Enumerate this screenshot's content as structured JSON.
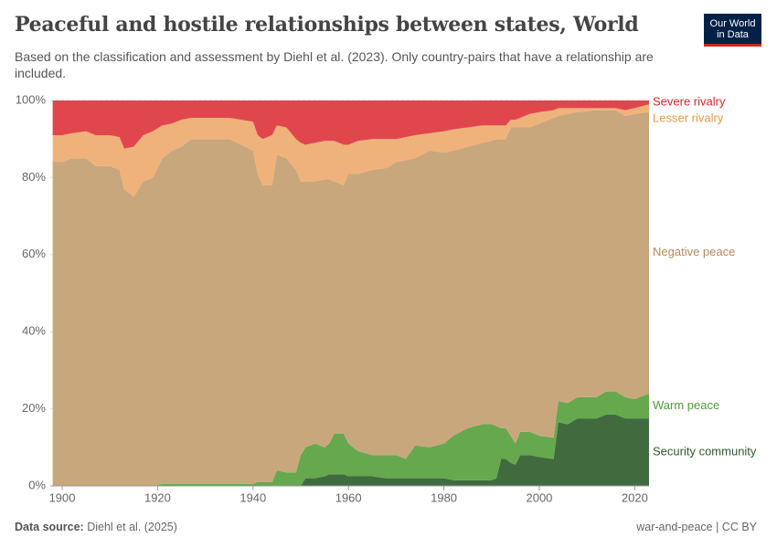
{
  "logo": [
    "Our World",
    "in Data"
  ],
  "chart_data": {
    "type": "stacked-area",
    "title": "Peaceful and hostile relationships between states, World",
    "subtitle": "Based on the classification and assessment by Diehl et al. (2023). Only country-pairs that have a relationship are included.",
    "source_label": "Data source:",
    "source": "Diehl et al. (2025)",
    "license": "war-and-peace | CC BY",
    "x": [
      1898,
      1900,
      1902,
      1905,
      1907,
      1910,
      1912,
      1913,
      1915,
      1917,
      1919,
      1921,
      1923,
      1925,
      1927,
      1930,
      1935,
      1940,
      1941,
      1942,
      1944,
      1945,
      1947,
      1949,
      1950,
      1951,
      1953,
      1955,
      1956,
      1957,
      1959,
      1960,
      1962,
      1965,
      1968,
      1970,
      1972,
      1974,
      1977,
      1980,
      1982,
      1985,
      1988,
      1990,
      1991,
      1992,
      1993,
      1994,
      1995,
      1996,
      1998,
      2000,
      2003,
      2004,
      2006,
      2008,
      2012,
      2014,
      2016,
      2018,
      2020,
      2023
    ],
    "xlim": [
      1897.5,
      2023
    ],
    "xticks": [
      1900,
      1920,
      1940,
      1960,
      1980,
      2000,
      2020
    ],
    "ylim": [
      0,
      100
    ],
    "yticks": [
      {
        "value": 0,
        "label": "0%"
      },
      {
        "value": 20,
        "label": "20%"
      },
      {
        "value": 40,
        "label": "40%"
      },
      {
        "value": 60,
        "label": "60%"
      },
      {
        "value": 80,
        "label": "80%"
      },
      {
        "value": 100,
        "label": "100%"
      }
    ],
    "grid": true,
    "series": [
      {
        "name": "Security community",
        "color": "#416b3f",
        "label_color": "#2e5a2b",
        "values": [
          0,
          0,
          0,
          0,
          0,
          0,
          0,
          0,
          0,
          0,
          0,
          0,
          0,
          0,
          0,
          0,
          0,
          0,
          0,
          0,
          0,
          0,
          0,
          0,
          0,
          2,
          2,
          2.5,
          3,
          3,
          3,
          2.5,
          2.5,
          2.5,
          2,
          2,
          2,
          2,
          2,
          2,
          1.5,
          1.5,
          1.5,
          1.5,
          2,
          7,
          7,
          6,
          5.5,
          8,
          8,
          7.5,
          7,
          16.5,
          16,
          17.5,
          17.5,
          18.5,
          18.5,
          17.5,
          17.5,
          17.5
        ]
      },
      {
        "name": "Warm peace",
        "color": "#65a84e",
        "label_color": "#4f9a35",
        "values": [
          0,
          0,
          0,
          0,
          0,
          0,
          0,
          0,
          0,
          0,
          0,
          0.5,
          0.5,
          0.5,
          0.5,
          0.5,
          0.5,
          0.5,
          1,
          1,
          1,
          4,
          3.5,
          3.5,
          8,
          8,
          9,
          7.5,
          8,
          10.5,
          10.5,
          8.5,
          6.5,
          5.5,
          6,
          6,
          5,
          8.5,
          8,
          9,
          11.5,
          13.5,
          14.5,
          14.5,
          13.5,
          8,
          8,
          7,
          5.5,
          6,
          6,
          5.5,
          5.5,
          5.5,
          5.5,
          5.5,
          5.5,
          6,
          6,
          5.5,
          5,
          6.5
        ]
      },
      {
        "name": "Negative peace",
        "color": "#c9a77c",
        "label_color": "#b8875a",
        "values": [
          84,
          84,
          85,
          85,
          83,
          83,
          82,
          77,
          75,
          79,
          80,
          84.5,
          86.5,
          87.5,
          89.5,
          89.5,
          89.5,
          86.5,
          80,
          77,
          77,
          82,
          81.5,
          78.5,
          71,
          69,
          68,
          69.5,
          68.5,
          65.5,
          64.5,
          70,
          72,
          74,
          74.5,
          76,
          77.5,
          74.5,
          77,
          75.5,
          74,
          73,
          73,
          73.5,
          74.5,
          75,
          75,
          80,
          82,
          79,
          79,
          81,
          83,
          74,
          75,
          74,
          74.5,
          73,
          73,
          73,
          74,
          73
        ]
      },
      {
        "name": "Lesser rivalry",
        "color": "#f0b27b",
        "label_color": "#e8994a",
        "values": [
          7,
          7,
          6.5,
          7,
          8,
          8,
          8.5,
          10.5,
          13,
          12,
          12,
          8.5,
          7,
          7,
          5.5,
          5.5,
          5.5,
          7.5,
          10,
          12,
          13,
          7.5,
          8,
          8,
          10,
          9.5,
          10,
          10,
          10,
          10.5,
          10.5,
          7.5,
          8.5,
          8,
          7.5,
          6,
          6,
          6,
          4.5,
          5.5,
          5.5,
          5,
          4.5,
          4,
          3.5,
          3.5,
          3.5,
          2,
          2,
          2.5,
          3.5,
          3,
          2,
          2,
          1.5,
          1,
          0.5,
          0.5,
          0.5,
          1.5,
          1.5,
          2
        ]
      },
      {
        "name": "Severe rivalry",
        "color": "#e0474c",
        "label_color": "#d9232d",
        "values": [
          9,
          9,
          8.5,
          8,
          9,
          9,
          9.5,
          12.5,
          12,
          9,
          8,
          6.5,
          6,
          5,
          4.5,
          4.5,
          4.5,
          5.5,
          9,
          10,
          9,
          6.5,
          7,
          10,
          11,
          11.5,
          11,
          10.5,
          10.5,
          10.5,
          11.5,
          11.5,
          10.5,
          10,
          10,
          10,
          9.5,
          9,
          8.5,
          8,
          7.5,
          7,
          6.5,
          6.5,
          6.5,
          6.5,
          6.5,
          5,
          5,
          4.5,
          3.5,
          3,
          2.5,
          2,
          2,
          2,
          2,
          2,
          2,
          2.5,
          2,
          1
        ]
      }
    ]
  }
}
